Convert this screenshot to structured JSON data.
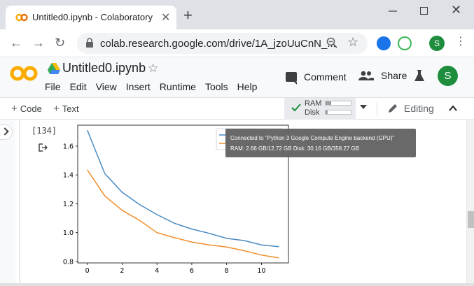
{
  "browser": {
    "tab_title": "Untitled0.ipynb - Colaboratory",
    "url": "colab.research.google.com/drive/1A_jzoUuCnN_...",
    "profile_initial": "S"
  },
  "colab": {
    "notebook_title": "Untitled0.ipynb",
    "menu": [
      "File",
      "Edit",
      "View",
      "Insert",
      "Runtime",
      "Tools",
      "Help"
    ],
    "comment_label": "Comment",
    "share_label": "Share",
    "avatar_initial": "S"
  },
  "toolbar": {
    "add_code_label": "Code",
    "add_text_label": "Text",
    "ram_label": "RAM",
    "disk_label": "Disk",
    "ram_usage": 0.21,
    "disk_usage": 0.08,
    "editing_label": "Editing"
  },
  "cell": {
    "exec_count": "[134]"
  },
  "tooltip": {
    "line1": "Connected to \"Python 3 Google Compute Engine backend (GPU)\"",
    "line2": "RAM: 2.66 GB/12.72 GB Disk: 30.16 GB/358.27 GB"
  },
  "colors": {
    "series_blue": "#4a8bc2",
    "series_orange": "#f28e2b"
  },
  "chart_data": {
    "type": "line",
    "x": [
      0,
      1,
      2,
      3,
      4,
      5,
      6,
      7,
      8,
      9,
      10,
      11
    ],
    "xlim": [
      -0.55,
      11.55
    ],
    "ylim": [
      0.79,
      1.745
    ],
    "xticks": [
      0,
      2,
      4,
      6,
      8,
      10
    ],
    "yticks": [
      0.8,
      1.0,
      1.2,
      1.4,
      1.6
    ],
    "ytick_labels": [
      "0.8",
      "1.0",
      "1.2",
      "1.4",
      "1.6"
    ],
    "series": [
      {
        "values": [
          1.71,
          1.41,
          1.28,
          1.195,
          1.125,
          1.065,
          1.025,
          0.995,
          0.96,
          0.945,
          0.915,
          0.903
        ]
      },
      {
        "values": [
          1.435,
          1.255,
          1.155,
          1.085,
          1.0,
          0.965,
          0.935,
          0.915,
          0.9,
          0.875,
          0.845,
          0.825
        ]
      }
    ],
    "legend_position": "top-right"
  }
}
